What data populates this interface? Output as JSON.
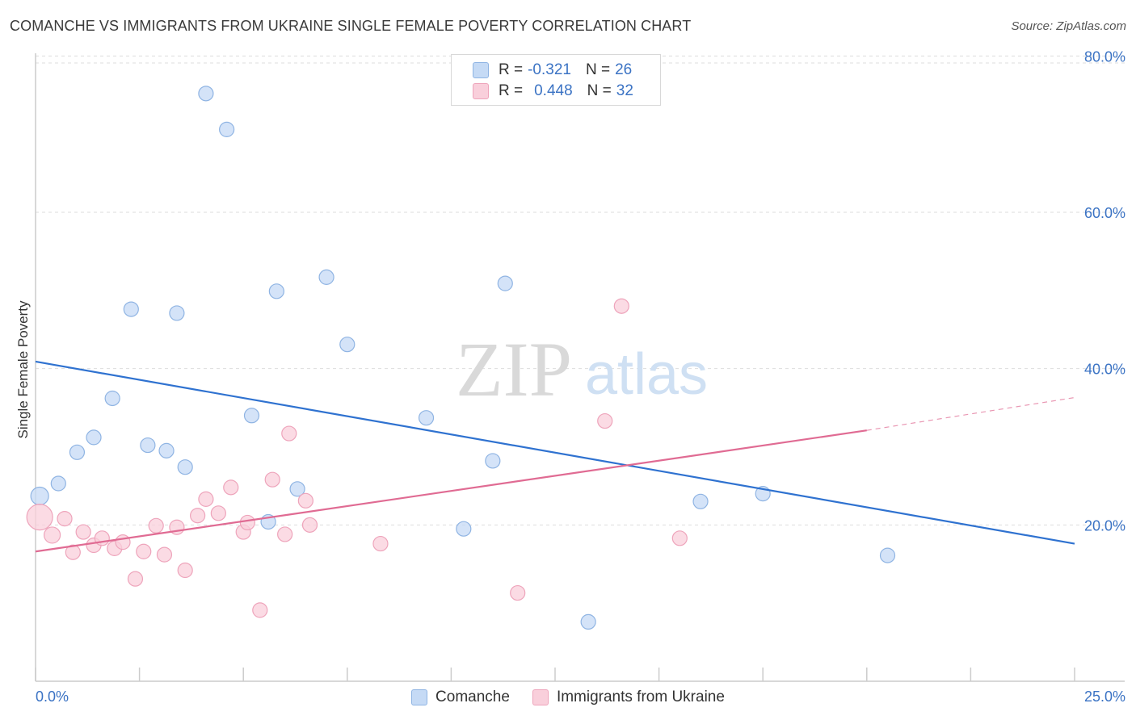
{
  "title": "COMANCHE VS IMMIGRANTS FROM UKRAINE SINGLE FEMALE POVERTY CORRELATION CHART",
  "source": "Source: ZipAtlas.com",
  "watermark": {
    "zip": "ZIP",
    "atlas": "atlas"
  },
  "colors": {
    "blue_fill": "#c5daf5",
    "blue_stroke": "#8fb4e3",
    "blue_line": "#2f72d0",
    "pink_fill": "#f9cfdb",
    "pink_stroke": "#eea4bb",
    "pink_line": "#e06b93",
    "tick_label": "#3b73c4",
    "grid": "#dddddd"
  },
  "legend": {
    "rows": [
      {
        "r_label": "R =",
        "r_value": "-0.321",
        "n_label": "N =",
        "n_value": "26"
      },
      {
        "r_label": "R =",
        "r_value": "0.448",
        "n_label": "N =",
        "n_value": "32"
      }
    ]
  },
  "bottom_legend": {
    "series_a": "Comanche",
    "series_b": "Immigrants from Ukraine"
  },
  "chart_data": {
    "type": "scatter",
    "title": "COMANCHE VS IMMIGRANTS FROM UKRAINE SINGLE FEMALE POVERTY CORRELATION CHART",
    "xlabel": "",
    "ylabel": "Single Female Poverty",
    "xlim": [
      0,
      25
    ],
    "ylim": [
      0,
      82
    ],
    "x_tick_labels": [
      "0.0%",
      "25.0%"
    ],
    "y_ticks": [
      20,
      40,
      60,
      80
    ],
    "y_tick_labels": [
      "20.0%",
      "40.0%",
      "60.0%",
      "80.0%"
    ],
    "series": [
      {
        "name": "Comanche",
        "r": -0.321,
        "n": 26,
        "points": [
          [
            0.1,
            23.7,
            22
          ],
          [
            0.55,
            25.3,
            18
          ],
          [
            1.0,
            29.3,
            18
          ],
          [
            1.4,
            31.2,
            18
          ],
          [
            1.85,
            36.2,
            18
          ],
          [
            2.3,
            47.6,
            18
          ],
          [
            2.7,
            30.2,
            18
          ],
          [
            3.15,
            29.5,
            18
          ],
          [
            3.4,
            47.1,
            18
          ],
          [
            3.6,
            27.4,
            18
          ],
          [
            4.1,
            75.2,
            18
          ],
          [
            4.6,
            70.6,
            18
          ],
          [
            5.2,
            34.0,
            18
          ],
          [
            5.6,
            20.4,
            18
          ],
          [
            5.8,
            49.9,
            18
          ],
          [
            6.3,
            24.6,
            18
          ],
          [
            7.0,
            51.7,
            18
          ],
          [
            7.5,
            43.1,
            18
          ],
          [
            9.4,
            33.7,
            18
          ],
          [
            10.3,
            19.5,
            18
          ],
          [
            11.0,
            28.2,
            18
          ],
          [
            11.3,
            50.9,
            18
          ],
          [
            13.3,
            7.6,
            18
          ],
          [
            16.0,
            23.0,
            18
          ],
          [
            17.5,
            24.0,
            18
          ],
          [
            20.5,
            16.1,
            18
          ]
        ],
        "trend": {
          "x0": 0,
          "y0": 40.9,
          "x1": 25,
          "y1": 17.6
        }
      },
      {
        "name": "Immigrants from Ukraine",
        "r": 0.448,
        "n": 32,
        "points": [
          [
            0.1,
            21.0,
            32
          ],
          [
            0.4,
            18.7,
            20
          ],
          [
            0.7,
            20.8,
            18
          ],
          [
            0.9,
            16.5,
            18
          ],
          [
            1.15,
            19.1,
            18
          ],
          [
            1.4,
            17.4,
            18
          ],
          [
            1.6,
            18.3,
            18
          ],
          [
            1.9,
            17.0,
            18
          ],
          [
            2.1,
            17.8,
            18
          ],
          [
            2.4,
            13.1,
            18
          ],
          [
            2.6,
            16.6,
            18
          ],
          [
            2.9,
            19.9,
            18
          ],
          [
            3.1,
            16.2,
            18
          ],
          [
            3.4,
            19.7,
            18
          ],
          [
            3.6,
            14.2,
            18
          ],
          [
            3.9,
            21.2,
            18
          ],
          [
            4.1,
            23.3,
            18
          ],
          [
            4.4,
            21.5,
            18
          ],
          [
            4.7,
            24.8,
            18
          ],
          [
            5.0,
            19.1,
            18
          ],
          [
            5.1,
            20.3,
            18
          ],
          [
            5.4,
            9.1,
            18
          ],
          [
            5.7,
            25.8,
            18
          ],
          [
            6.0,
            18.8,
            18
          ],
          [
            6.1,
            31.7,
            18
          ],
          [
            6.5,
            23.1,
            18
          ],
          [
            6.6,
            20.0,
            18
          ],
          [
            8.3,
            17.6,
            18
          ],
          [
            11.6,
            11.3,
            18
          ],
          [
            13.7,
            33.3,
            18
          ],
          [
            14.1,
            48.0,
            18
          ],
          [
            15.5,
            18.3,
            18
          ]
        ],
        "trend": {
          "x0": 0,
          "y0": 16.6,
          "x1": 20,
          "y1": 32.1,
          "dash_x1": 25,
          "dash_y1": 36.3
        }
      }
    ]
  }
}
